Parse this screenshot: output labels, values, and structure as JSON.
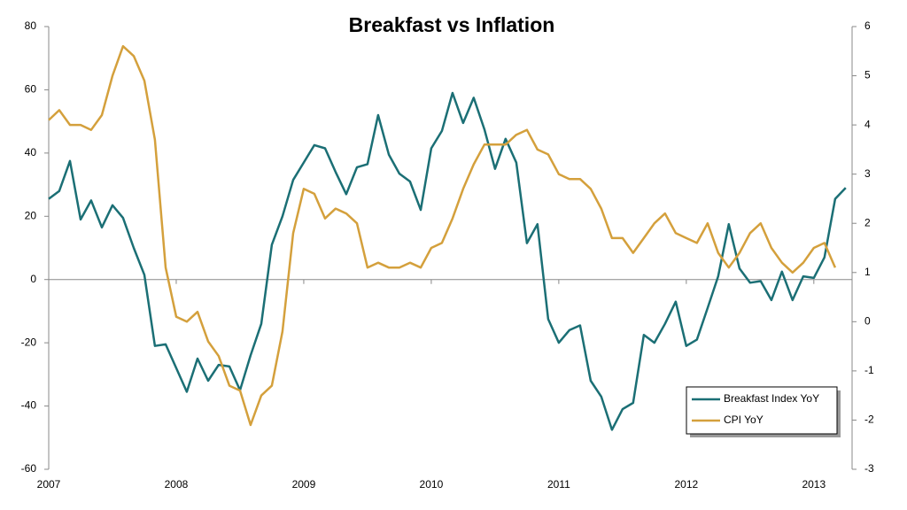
{
  "chart_data": {
    "type": "line",
    "title": "Breakfast vs Inflation",
    "x": [
      2007,
      2007.083,
      2007.167,
      2007.25,
      2007.333,
      2007.417,
      2007.5,
      2007.583,
      2007.667,
      2007.75,
      2007.833,
      2007.917,
      2008,
      2008.083,
      2008.167,
      2008.25,
      2008.333,
      2008.417,
      2008.5,
      2008.583,
      2008.667,
      2008.75,
      2008.833,
      2008.917,
      2009,
      2009.083,
      2009.167,
      2009.25,
      2009.333,
      2009.417,
      2009.5,
      2009.583,
      2009.667,
      2009.75,
      2009.833,
      2009.917,
      2010,
      2010.083,
      2010.167,
      2010.25,
      2010.333,
      2010.417,
      2010.5,
      2010.583,
      2010.667,
      2010.75,
      2010.833,
      2010.917,
      2011,
      2011.083,
      2011.167,
      2011.25,
      2011.333,
      2011.417,
      2011.5,
      2011.583,
      2011.667,
      2011.75,
      2011.833,
      2011.917,
      2012,
      2012.083,
      2012.167,
      2012.25,
      2012.333,
      2012.417,
      2012.5,
      2012.583,
      2012.667,
      2012.75,
      2012.833,
      2012.917,
      2013,
      2013.083,
      2013.167,
      2013.25
    ],
    "series": [
      {
        "name": "Breakfast Index YoY",
        "color": "#1b6f75",
        "axis": "y",
        "values": [
          25.5,
          28,
          37.5,
          19,
          25,
          16.5,
          23.5,
          19.5,
          10,
          1.5,
          -21,
          -20.5,
          -28,
          -35.5,
          -25,
          -32,
          -27,
          -27.5,
          -35,
          -24,
          -14,
          11,
          20,
          31.5,
          37,
          42.5,
          41.5,
          34,
          27,
          35.5,
          36.5,
          52,
          39.5,
          33.5,
          31,
          22,
          41.5,
          47,
          59,
          49.5,
          57.5,
          47.5,
          35,
          44.5,
          37,
          11.5,
          17.5,
          -12.5,
          -20,
          -16,
          -14.5,
          -32,
          -37,
          -47.5,
          -41,
          -39,
          -17.5,
          -20,
          -14,
          -7,
          -21,
          -19,
          -9,
          1,
          17.5,
          3.5,
          -1,
          -0.5,
          -6.5,
          2.5,
          -6.5,
          1,
          0.5,
          7,
          25.5,
          29
        ]
      },
      {
        "name": "CPI YoY",
        "color": "#d4a03c",
        "axis": "y2",
        "values": [
          4.1,
          4.3,
          4.0,
          4.0,
          3.9,
          4.2,
          5.0,
          5.6,
          5.4,
          4.9,
          3.7,
          1.1,
          0.1,
          0.0,
          0.2,
          -0.4,
          -0.7,
          -1.3,
          -1.4,
          -2.1,
          -1.5,
          -1.3,
          -0.2,
          1.8,
          2.7,
          2.6,
          2.1,
          2.3,
          2.2,
          2.0,
          1.1,
          1.2,
          1.1,
          1.1,
          1.2,
          1.1,
          1.5,
          1.6,
          2.1,
          2.7,
          3.2,
          3.6,
          3.6,
          3.6,
          3.8,
          3.9,
          3.5,
          3.4,
          3.0,
          2.9,
          2.9,
          2.7,
          2.3,
          1.7,
          1.7,
          1.4,
          1.7,
          2.0,
          2.2,
          1.8,
          1.7,
          1.6,
          2.0,
          1.4,
          1.1,
          1.4,
          1.8,
          2.0,
          1.5,
          1.2,
          1.0,
          1.2,
          1.5,
          1.6,
          1.1,
          null
        ]
      }
    ],
    "xlim": [
      2007,
      2013.3
    ],
    "xticks": [
      2007,
      2008,
      2009,
      2010,
      2011,
      2012,
      2013
    ],
    "ylim": [
      -60,
      80
    ],
    "yticks": [
      80,
      60,
      40,
      20,
      0,
      -20,
      -40,
      -60
    ],
    "y2lim": [
      -3,
      6
    ],
    "y2ticks": [
      6,
      5,
      4,
      3,
      2,
      1,
      0,
      -1,
      -2,
      -3
    ],
    "legend": "lower right"
  }
}
